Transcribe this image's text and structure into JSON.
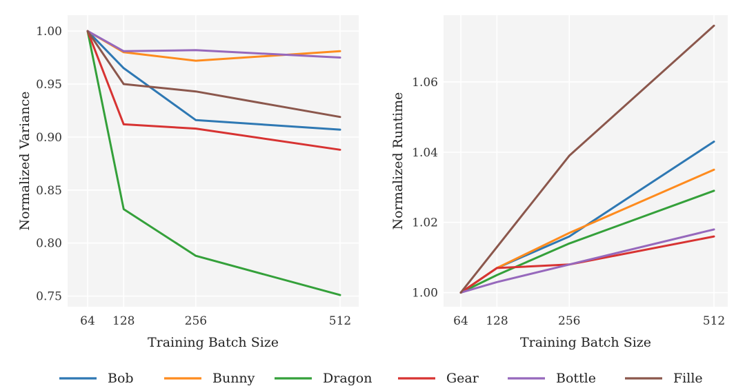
{
  "chart_data": [
    {
      "type": "line",
      "title": "",
      "xlabel": "Training Batch Size",
      "ylabel": "Normalized Variance",
      "x": [
        64,
        128,
        256,
        512
      ],
      "xticks": [
        "64",
        "128",
        "256",
        "512"
      ],
      "ylim": [
        0.74,
        1.015
      ],
      "yticks": [
        0.75,
        0.8,
        0.85,
        0.9,
        0.95,
        1.0
      ],
      "ytick_labels": [
        "0.75",
        "0.80",
        "0.85",
        "0.90",
        "0.95",
        "1.00"
      ],
      "grid": true,
      "series": [
        {
          "name": "Bob",
          "values": [
            1.0,
            0.965,
            0.916,
            0.907
          ]
        },
        {
          "name": "Bunny",
          "values": [
            1.0,
            0.98,
            0.972,
            0.981
          ]
        },
        {
          "name": "Dragon",
          "values": [
            1.0,
            0.832,
            0.788,
            0.751
          ]
        },
        {
          "name": "Gear",
          "values": [
            1.0,
            0.912,
            0.908,
            0.888
          ]
        },
        {
          "name": "Bottle",
          "values": [
            1.0,
            0.981,
            0.982,
            0.975
          ]
        },
        {
          "name": "Fille",
          "values": [
            1.0,
            0.95,
            0.943,
            0.919
          ]
        }
      ]
    },
    {
      "type": "line",
      "title": "",
      "xlabel": "Training Batch Size",
      "ylabel": "Normalized Runtime",
      "x": [
        64,
        128,
        256,
        512
      ],
      "xticks": [
        "64",
        "128",
        "256",
        "512"
      ],
      "ylim": [
        0.996,
        1.079
      ],
      "yticks": [
        1.0,
        1.02,
        1.04,
        1.06
      ],
      "ytick_labels": [
        "1.00",
        "1.02",
        "1.04",
        "1.06"
      ],
      "grid": true,
      "series": [
        {
          "name": "Bob",
          "values": [
            1.0,
            1.007,
            1.016,
            1.043
          ]
        },
        {
          "name": "Bunny",
          "values": [
            1.0,
            1.007,
            1.017,
            1.035
          ]
        },
        {
          "name": "Dragon",
          "values": [
            1.0,
            1.005,
            1.014,
            1.029
          ]
        },
        {
          "name": "Gear",
          "values": [
            1.0,
            1.007,
            1.008,
            1.016
          ]
        },
        {
          "name": "Bottle",
          "values": [
            1.0,
            1.003,
            1.008,
            1.018
          ]
        },
        {
          "name": "Fille",
          "values": [
            1.0,
            1.013,
            1.039,
            1.076
          ]
        }
      ]
    }
  ],
  "legend": {
    "position": "bottom",
    "entries": [
      "Bob",
      "Bunny",
      "Dragon",
      "Gear",
      "Bottle",
      "Fille"
    ]
  },
  "colors": {
    "Bob": "#2e78b3",
    "Bunny": "#fe8b1e",
    "Dragon": "#34a03a",
    "Gear": "#d73332",
    "Bottle": "#9668bc",
    "Fille": "#8b574c"
  }
}
